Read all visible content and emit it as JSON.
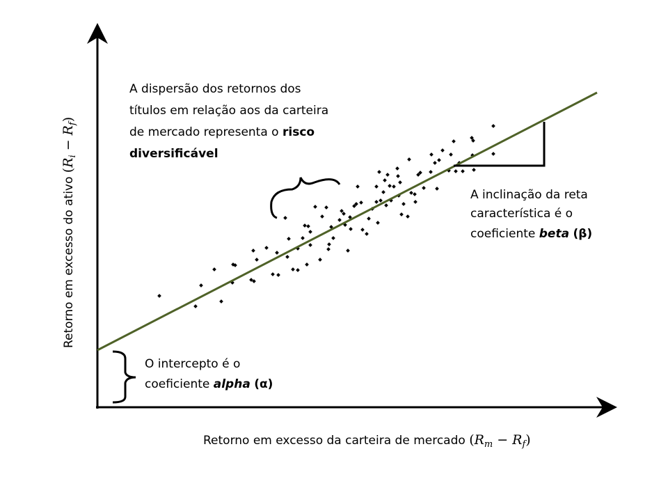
{
  "x_axis": {
    "text": "Retorno em excesso da carteira de mercado",
    "math": {
      "open": "(",
      "a": "R",
      "a_sub": "m",
      "op": "−",
      "b": "R",
      "b_sub": "f",
      "close": ")"
    }
  },
  "y_axis": {
    "text": "Retorno em excesso do ativo",
    "math": {
      "open": "(",
      "a": "R",
      "a_sub": "i",
      "op": "−",
      "b": "R",
      "b_sub": "f",
      "close": ")"
    }
  },
  "dispersion": {
    "lines": [
      "A dispersão dos retornos dos",
      "títulos em relação aos da carteira",
      "de mercado representa o"
    ],
    "bold": [
      "risco",
      "diversificável"
    ]
  },
  "slope": {
    "lines": [
      "A inclinação da reta",
      "característica é o",
      "coeficiente"
    ],
    "italic_bold": "beta",
    "bold": "(β)"
  },
  "intercept": {
    "lines": [
      "O intercepto é o",
      "coeficiente"
    ],
    "italic_bold": "alpha",
    "bold": "(α)"
  }
}
